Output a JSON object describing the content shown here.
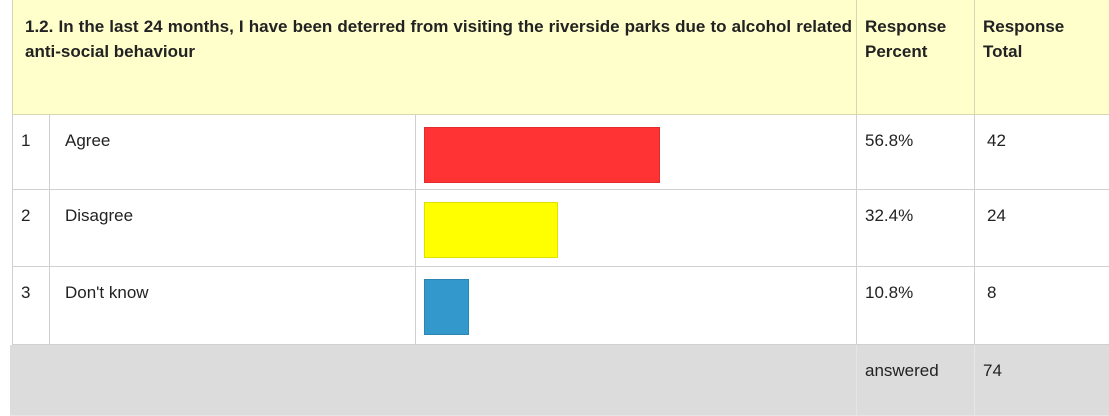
{
  "header": {
    "question": "1.2. In the last 24 months, I have been deterred from visiting the riverside parks due to alcohol related anti-social behaviour",
    "percent_heading": "Response Percent",
    "total_heading": "Response Total"
  },
  "table": {
    "rows": [
      {
        "index": "1",
        "label": "Agree",
        "percent": 56.8,
        "percent_label": "56.8%",
        "total": 42,
        "color": "#ff3333"
      },
      {
        "index": "2",
        "label": "Disagree",
        "percent": 32.4,
        "percent_label": "32.4%",
        "total": 24,
        "color": "#ffff00"
      },
      {
        "index": "3",
        "label": "Don't know",
        "percent": 10.8,
        "percent_label": "10.8%",
        "total": 8,
        "color": "#3399cc"
      }
    ]
  },
  "footer": {
    "label": "answered",
    "total": 74
  }
}
